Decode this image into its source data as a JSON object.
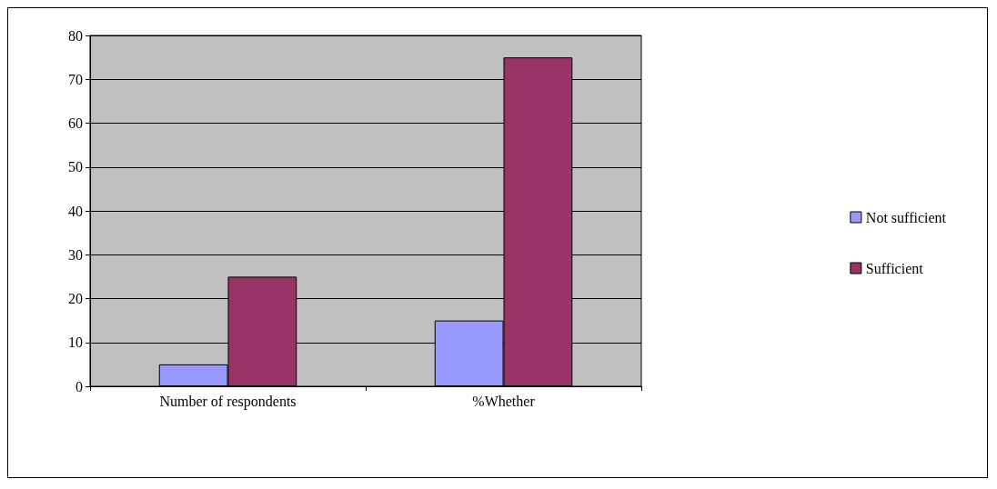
{
  "chart_data": {
    "type": "bar",
    "categories": [
      "Number of respondents",
      "%Whether"
    ],
    "series": [
      {
        "name": "Not sufficient",
        "color": "#9999ff",
        "values": [
          5,
          15
        ]
      },
      {
        "name": "Sufficient",
        "color": "#993366",
        "values": [
          25,
          75
        ]
      }
    ],
    "ylim": [
      0,
      80
    ],
    "yticks": [
      0,
      10,
      20,
      30,
      40,
      50,
      60,
      70,
      80
    ],
    "grid": "y",
    "legend": "right"
  }
}
